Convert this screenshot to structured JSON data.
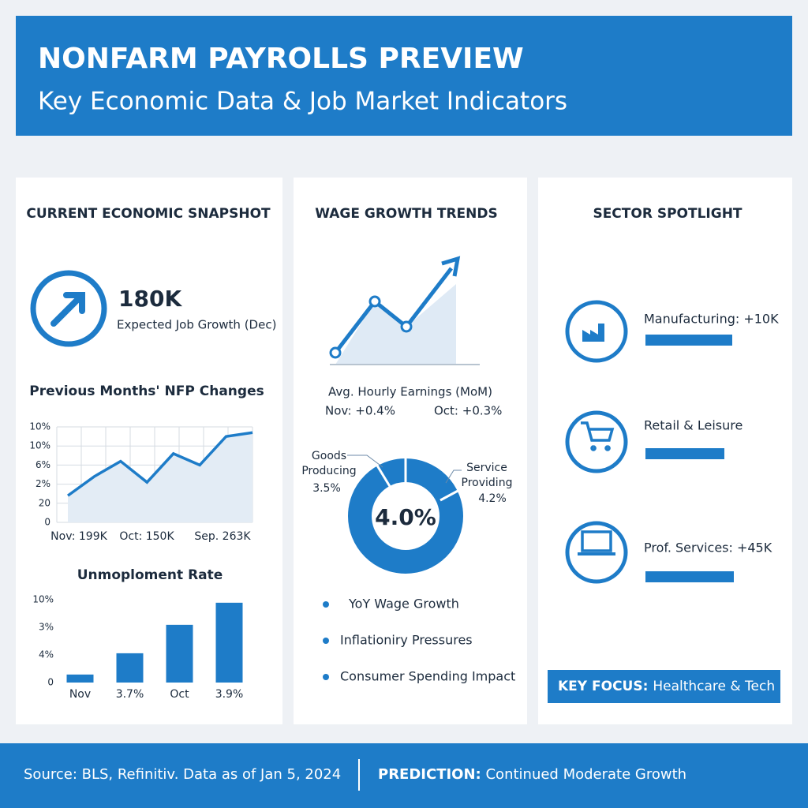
{
  "header": {
    "title": "NONFARM PAYROLLS PREVIEW",
    "subtitle": "Key Economic Data & Job Market Indicators"
  },
  "snapshot": {
    "title": "CURRENT ECONOMIC SNAPSHOT",
    "value": "180K",
    "label": "Expected Job Growth (Dec)"
  },
  "nfp_chart": {
    "type": "line",
    "title": "Previous Months' NFP Changes",
    "values": [
      1.4,
      2.4,
      3.2,
      2.1,
      3.6,
      3.0,
      4.5,
      4.7
    ],
    "ylim": [
      0,
      5
    ],
    "yticks": [
      0,
      {
        "value": 1,
        "label": "20"
      },
      {
        "value": 2,
        "label": "2%"
      },
      {
        "value": 3,
        "label": "6%"
      },
      {
        "value": 4,
        "label": "10%"
      },
      {
        "value": 5,
        "label": "10%"
      }
    ],
    "x_labels": [
      "Nov: 199K",
      "Oct: 150K",
      "Sep. 263K"
    ],
    "color": "#1e7cc8",
    "grid": true
  },
  "unemployment_chart": {
    "type": "bar",
    "title": "Unmoploment Rate",
    "categories": [
      "Nov",
      "3.7%",
      "Oct",
      "3.9%"
    ],
    "values": [
      0.29,
      1.06,
      2.09,
      2.89
    ],
    "ylim": [
      0,
      3
    ],
    "yticks": [
      0,
      {
        "value": 1,
        "label": "4%"
      },
      {
        "value": 2,
        "label": "3%"
      },
      {
        "value": 3,
        "label": "10%"
      }
    ],
    "color": "#1e7cc8"
  },
  "wage": {
    "title": "WAGE GROWTH TRENDS",
    "earnings_label": "Avg. Hourly Earnings (MoM)",
    "nov": "Nov: +0.4%",
    "oct": "Oct: +0.3%",
    "donut_center": "4.0%",
    "goods_label": "Goods\nProducing",
    "goods_value": "3.5%",
    "service_label": "Service\nProviding",
    "service_value": "4.2%",
    "bullets": [
      "YoY Wage Growth",
      "Inflationiry Pressures",
      "Consumer Spending Impact"
    ]
  },
  "sectors": {
    "title": "SECTOR SPOTLIGHT",
    "items": [
      "Manufacturing: +10K",
      "Retail & Leisure",
      "Prof. Services: +45K"
    ],
    "key_focus_prefix": "KEY FOCUS:",
    "key_focus": "Healthcare & Tech"
  },
  "footer": {
    "source": "Source: BLS, Refinitiv. Data as of Jan 5, 2024",
    "prediction_prefix": "PREDICTION:",
    "prediction": "Continued Moderate Growth"
  }
}
